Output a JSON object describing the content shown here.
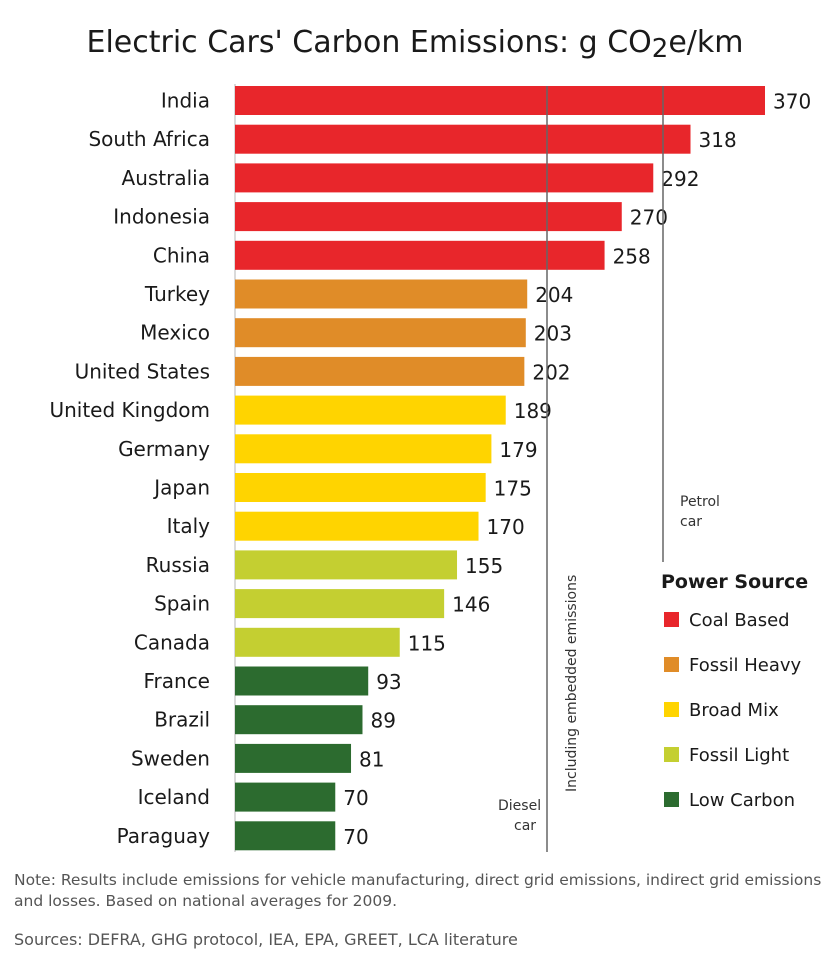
{
  "chart_data": {
    "type": "bar",
    "orientation": "horizontal",
    "title": "Electric Cars' Carbon Emissions: g CO2e/km",
    "categories": [
      "India",
      "South Africa",
      "Australia",
      "Indonesia",
      "China",
      "Turkey",
      "Mexico",
      "United States",
      "United Kingdom",
      "Germany",
      "Japan",
      "Italy",
      "Russia",
      "Spain",
      "Canada",
      "France",
      "Brazil",
      "Sweden",
      "Iceland",
      "Paraguay"
    ],
    "values": [
      370,
      318,
      292,
      270,
      258,
      204,
      203,
      202,
      189,
      179,
      175,
      170,
      155,
      146,
      115,
      93,
      89,
      81,
      70,
      70
    ],
    "groups": [
      "Coal Based",
      "Coal Based",
      "Coal Based",
      "Coal Based",
      "Coal Based",
      "Fossil Heavy",
      "Fossil Heavy",
      "Fossil Heavy",
      "Broad Mix",
      "Broad Mix",
      "Broad Mix",
      "Broad Mix",
      "Fossil Light",
      "Fossil Light",
      "Fossil Light",
      "Low Carbon",
      "Low Carbon",
      "Low Carbon",
      "Low Carbon",
      "Low Carbon"
    ],
    "value_labels": true,
    "xlim": [
      0,
      380
    ],
    "grid": false,
    "reference_lines": [
      {
        "label": "Petrol car",
        "value": 330
      },
      {
        "label": "Diesel car",
        "value": 230
      }
    ],
    "reference_note": "Including embedded emissions",
    "legend": {
      "title": "Power Source",
      "placement": "right",
      "entries": [
        {
          "name": "Coal Based",
          "color": "#e8262b"
        },
        {
          "name": "Fossil Heavy",
          "color": "#e08c28"
        },
        {
          "name": "Broad Mix",
          "color": "#ffd400"
        },
        {
          "name": "Fossil Light",
          "color": "#c4cf31"
        },
        {
          "name": "Low Carbon",
          "color": "#2c6b2f"
        }
      ]
    }
  },
  "footer": {
    "note": "Note:  Results include emissions for vehicle manufacturing, direct grid emissions, indirect grid emissions and losses.  Based on national averages for 2009.",
    "sources": "Sources: DEFRA, GHG protocol, IEA, EPA, GREET, LCA literature"
  }
}
